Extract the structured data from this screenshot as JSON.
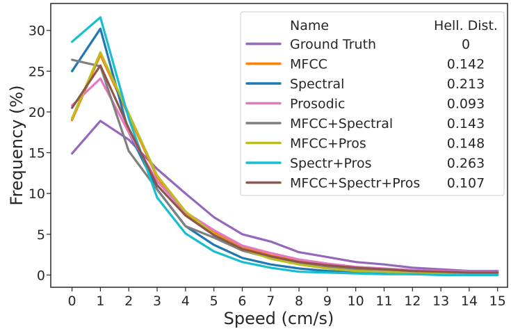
{
  "chart_data": {
    "type": "line",
    "title": "",
    "xlabel": "Speed (cm/s)",
    "ylabel": "Frequency (%)",
    "x": [
      0,
      1,
      2,
      3,
      4,
      5,
      6,
      7,
      8,
      9,
      10,
      11,
      12,
      13,
      14,
      15
    ],
    "xlim": [
      -0.75,
      15.35
    ],
    "ylim": [
      -1.5,
      33.3
    ],
    "yticks": [
      0,
      5,
      10,
      15,
      20,
      25,
      30
    ],
    "grid": false,
    "legend": {
      "placement": "top-right",
      "header_name": "Name",
      "header_value": "Hell. Dist."
    },
    "series": [
      {
        "name": "Ground Truth",
        "dist": "0",
        "color": "#9467bd",
        "values": [
          14.9,
          18.9,
          16.6,
          13.0,
          10.0,
          7.1,
          5.0,
          4.1,
          2.8,
          2.2,
          1.6,
          1.3,
          0.9,
          0.7,
          0.5,
          0.5
        ]
      },
      {
        "name": "MFCC",
        "dist": "0.142",
        "color": "#ff7f0e",
        "values": [
          19.0,
          27.0,
          19.5,
          12.0,
          7.5,
          5.2,
          3.5,
          2.4,
          1.7,
          1.1,
          0.8,
          0.6,
          0.4,
          0.3,
          0.2,
          0.2
        ]
      },
      {
        "name": "Spectral",
        "dist": "0.213",
        "color": "#1f77b4",
        "values": [
          25.0,
          30.2,
          17.5,
          10.5,
          6.0,
          3.7,
          2.1,
          1.3,
          0.8,
          0.5,
          0.3,
          0.2,
          0.1,
          0.1,
          0.1,
          0.1
        ]
      },
      {
        "name": "Prosodic",
        "dist": "0.093",
        "color": "#e377c2",
        "values": [
          20.8,
          24.1,
          17.5,
          11.5,
          7.7,
          5.5,
          3.6,
          2.7,
          1.9,
          1.4,
          1.0,
          0.8,
          0.6,
          0.5,
          0.4,
          0.4
        ]
      },
      {
        "name": "MFCC+Spectral",
        "dist": "0.143",
        "color": "#7f7f7f",
        "values": [
          26.4,
          25.6,
          15.2,
          10.5,
          6.0,
          4.6,
          3.0,
          2.1,
          1.5,
          1.0,
          0.7,
          0.5,
          0.4,
          0.3,
          0.2,
          0.2
        ]
      },
      {
        "name": "MFCC+Pros",
        "dist": "0.148",
        "color": "#bcbd22",
        "values": [
          19.2,
          27.3,
          19.8,
          12.2,
          7.8,
          5.0,
          3.2,
          2.0,
          1.3,
          0.8,
          0.5,
          0.4,
          0.3,
          0.2,
          0.1,
          0.1
        ]
      },
      {
        "name": "Spectr+Pros",
        "dist": "0.263",
        "color": "#17becf",
        "values": [
          28.6,
          31.6,
          19.2,
          9.5,
          5.1,
          2.9,
          1.6,
          0.9,
          0.4,
          0.3,
          0.2,
          0.1,
          0.1,
          0.0,
          0.0,
          0.0
        ]
      },
      {
        "name": "MFCC+Spectr+Pros",
        "dist": "0.107",
        "color": "#8c564b",
        "values": [
          20.5,
          25.7,
          18.0,
          11.0,
          7.3,
          4.9,
          3.2,
          2.3,
          1.6,
          1.2,
          0.9,
          0.7,
          0.5,
          0.4,
          0.3,
          0.3
        ]
      }
    ]
  }
}
